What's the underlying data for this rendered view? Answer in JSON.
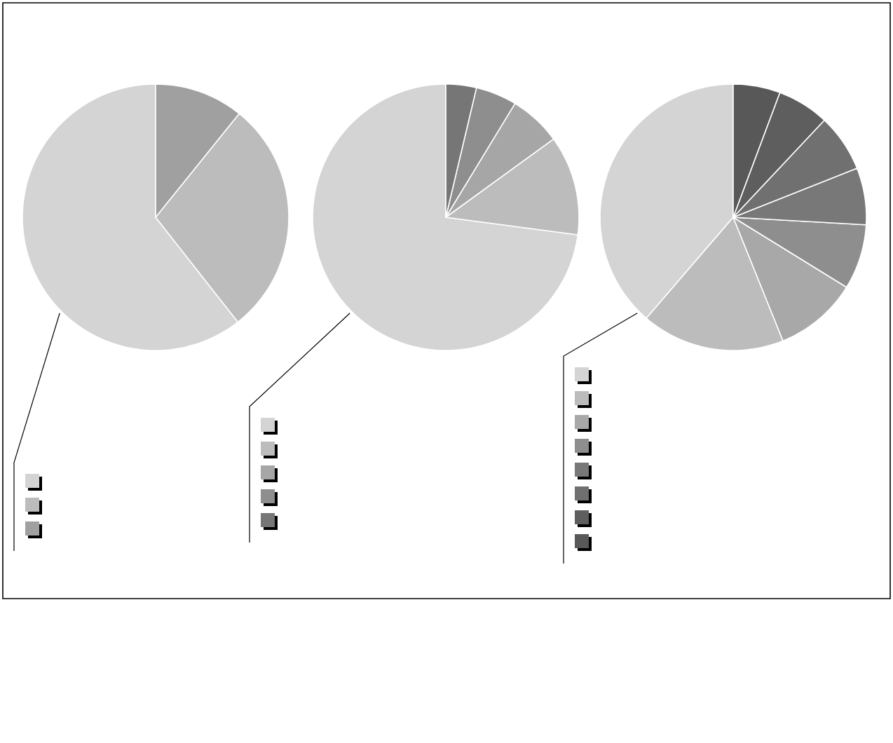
{
  "chart_data": [
    {
      "type": "pie",
      "categories": [
        null,
        null,
        null
      ],
      "values": [
        60.6,
        28.6,
        10.8
      ],
      "colors": [
        "#d4d4d4",
        "#bcbcbc",
        "#a0a0a0"
      ]
    },
    {
      "type": "pie",
      "categories": [
        null,
        null,
        null,
        null,
        null
      ],
      "values": [
        72.9,
        12.1,
        6.3,
        5.0,
        3.7
      ],
      "colors": [
        "#d4d4d4",
        "#bcbcbc",
        "#a6a6a6",
        "#8e8e8e",
        "#767676"
      ]
    },
    {
      "type": "pie",
      "categories": [
        null,
        null,
        null,
        null,
        null,
        null,
        null,
        null
      ],
      "values": [
        38.7,
        17.4,
        10.1,
        7.9,
        6.9,
        7.0,
        6.3,
        5.7
      ],
      "colors": [
        "#d4d4d4",
        "#bcbcbc",
        "#a8a8a8",
        "#8e8e8e",
        "#787878",
        "#707070",
        "#5e5e5e",
        "#585858"
      ]
    }
  ]
}
